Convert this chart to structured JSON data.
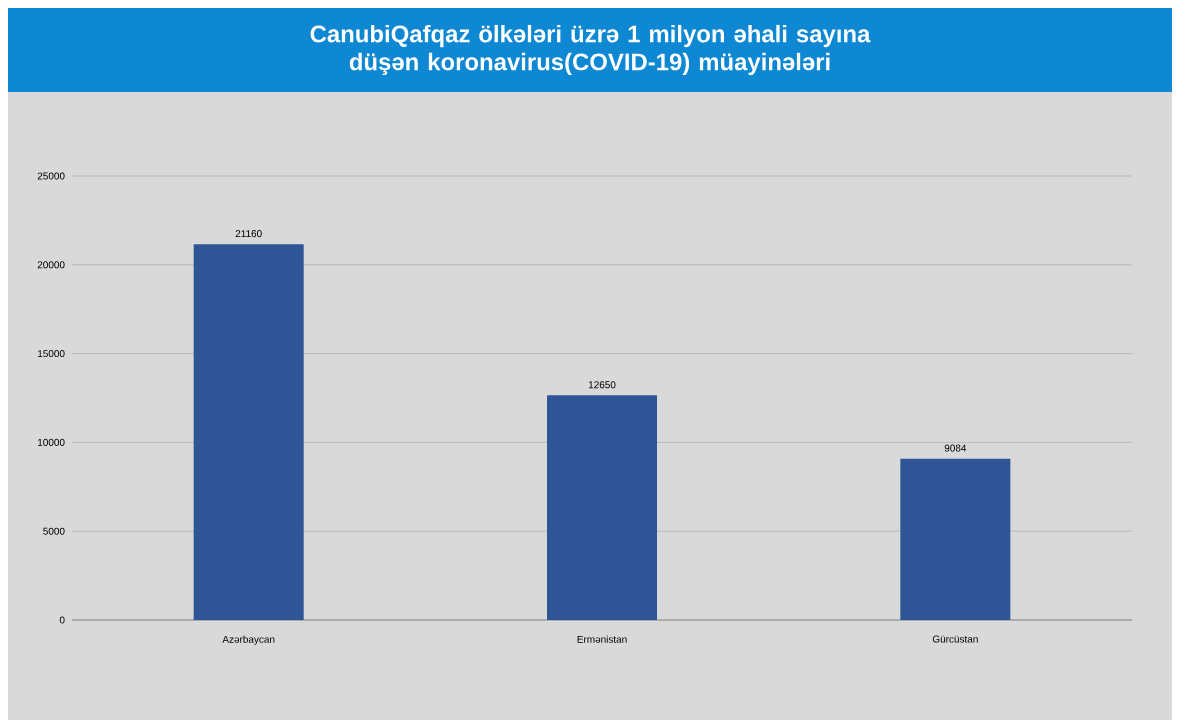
{
  "chart_data": {
    "type": "bar",
    "title": "CanubiQafqaz ölkələri üzrə 1 milyon əhali sayına düşən koronavirus(COVID-19) müayinələri",
    "categories": [
      "Azərbaycan",
      "Ermənistan",
      "Gürcüstan"
    ],
    "values": [
      21160,
      12650,
      9084
    ],
    "color": "#2f5597",
    "ylim": [
      0,
      25000
    ],
    "yticks": [
      0,
      5000,
      10000,
      15000,
      20000,
      25000
    ],
    "grid": "y",
    "data_labels": true
  }
}
